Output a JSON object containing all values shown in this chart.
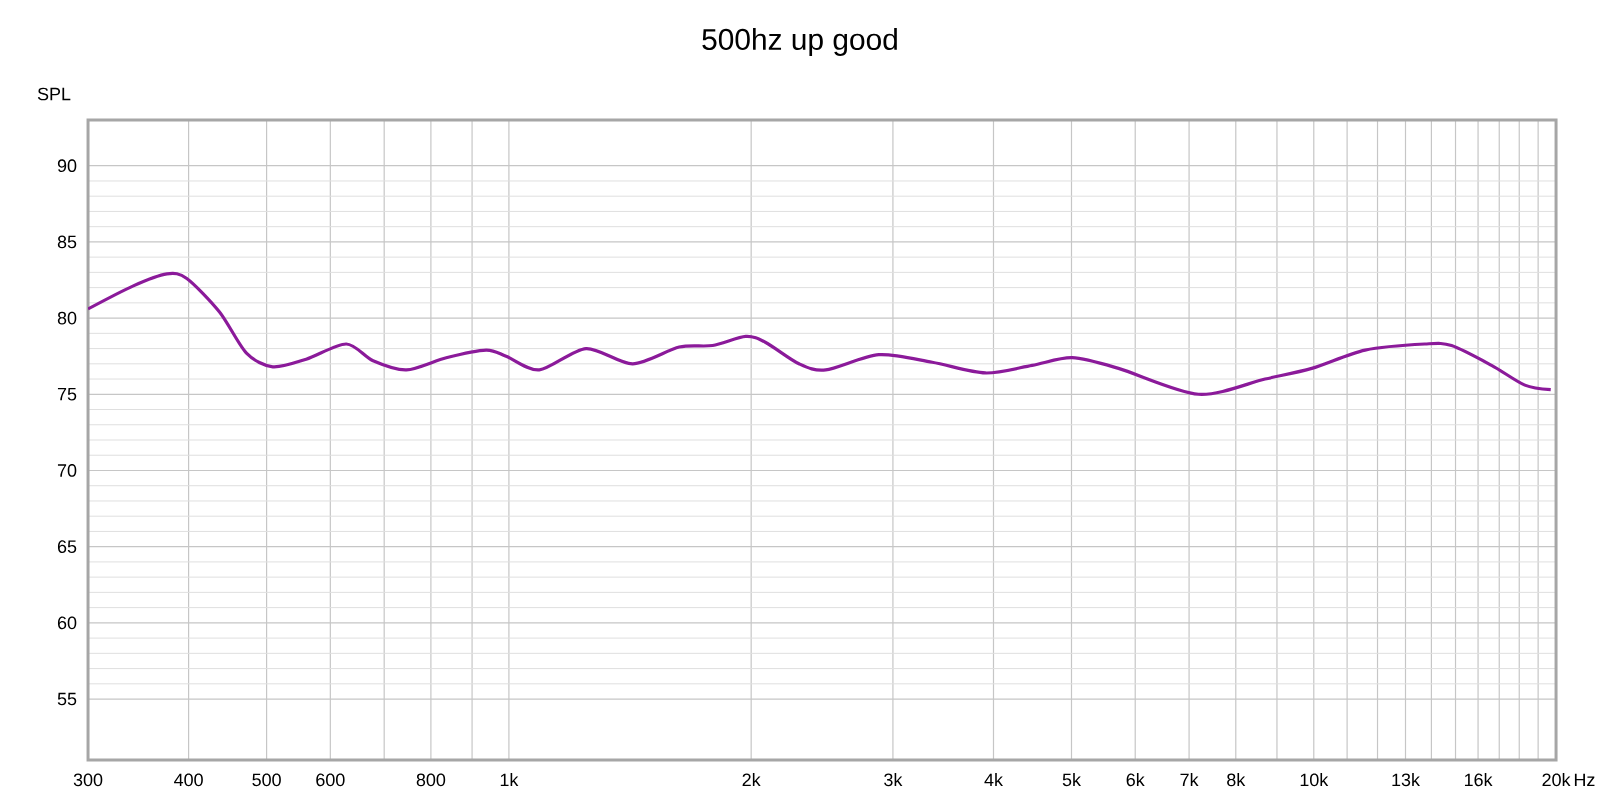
{
  "chart_data": {
    "type": "line",
    "title": "500hz up good",
    "ylabel": "SPL",
    "x": [
      300,
      341,
      376,
      398,
      437,
      472,
      509,
      560,
      628,
      678,
      746,
      836,
      937,
      992,
      1091,
      1247,
      1425,
      1628,
      1791,
      1969,
      2085,
      2293,
      2475,
      2882,
      3357,
      3909,
      4467,
      5010,
      5720,
      7190,
      8700,
      9942,
      11580,
      13740,
      14830,
      16630,
      18290,
      19700
    ],
    "series": [
      {
        "color": "#8b1a9a",
        "values": [
          80.6,
          82.1,
          82.9,
          82.6,
          80.4,
          77.7,
          76.8,
          77.3,
          78.3,
          77.2,
          76.6,
          77.4,
          77.9,
          77.5,
          76.6,
          78.0,
          77.0,
          78.1,
          78.2,
          78.8,
          78.4,
          77.0,
          76.6,
          77.6,
          77.1,
          76.4,
          76.9,
          77.4,
          76.7,
          75.0,
          76.0,
          76.7,
          77.9,
          78.3,
          78.2,
          76.9,
          75.6,
          75.3
        ]
      }
    ],
    "log": "x",
    "xlim": [
      300,
      20000
    ],
    "ylim": [
      51,
      93
    ],
    "xticks": [
      {
        "value": 300,
        "label": "300"
      },
      {
        "value": 400,
        "label": "400"
      },
      {
        "value": 500,
        "label": "500"
      },
      {
        "value": 600,
        "label": "600"
      },
      {
        "value": 700,
        "label": null
      },
      {
        "value": 800,
        "label": "800"
      },
      {
        "value": 900,
        "label": null
      },
      {
        "value": 1000,
        "label": "1k"
      },
      {
        "value": 2000,
        "label": "2k"
      },
      {
        "value": 3000,
        "label": "3k"
      },
      {
        "value": 4000,
        "label": "4k"
      },
      {
        "value": 5000,
        "label": "5k"
      },
      {
        "value": 6000,
        "label": "6k"
      },
      {
        "value": 7000,
        "label": "7k"
      },
      {
        "value": 8000,
        "label": "8k"
      },
      {
        "value": 9000,
        "label": null
      },
      {
        "value": 10000,
        "label": "10k"
      },
      {
        "value": 11000,
        "label": null
      },
      {
        "value": 12000,
        "label": null
      },
      {
        "value": 13000,
        "label": "13k"
      },
      {
        "value": 14000,
        "label": null
      },
      {
        "value": 15000,
        "label": null
      },
      {
        "value": 16000,
        "label": "16k"
      },
      {
        "value": 17000,
        "label": null
      },
      {
        "value": 18000,
        "label": null
      },
      {
        "value": 19000,
        "label": null
      },
      {
        "value": 20000,
        "label": "20k"
      }
    ],
    "xlabel": "Hz",
    "yticks": [
      55,
      60,
      65,
      70,
      75,
      80,
      85,
      90
    ],
    "grid": true,
    "marker": "none",
    "line_style": "solid"
  }
}
